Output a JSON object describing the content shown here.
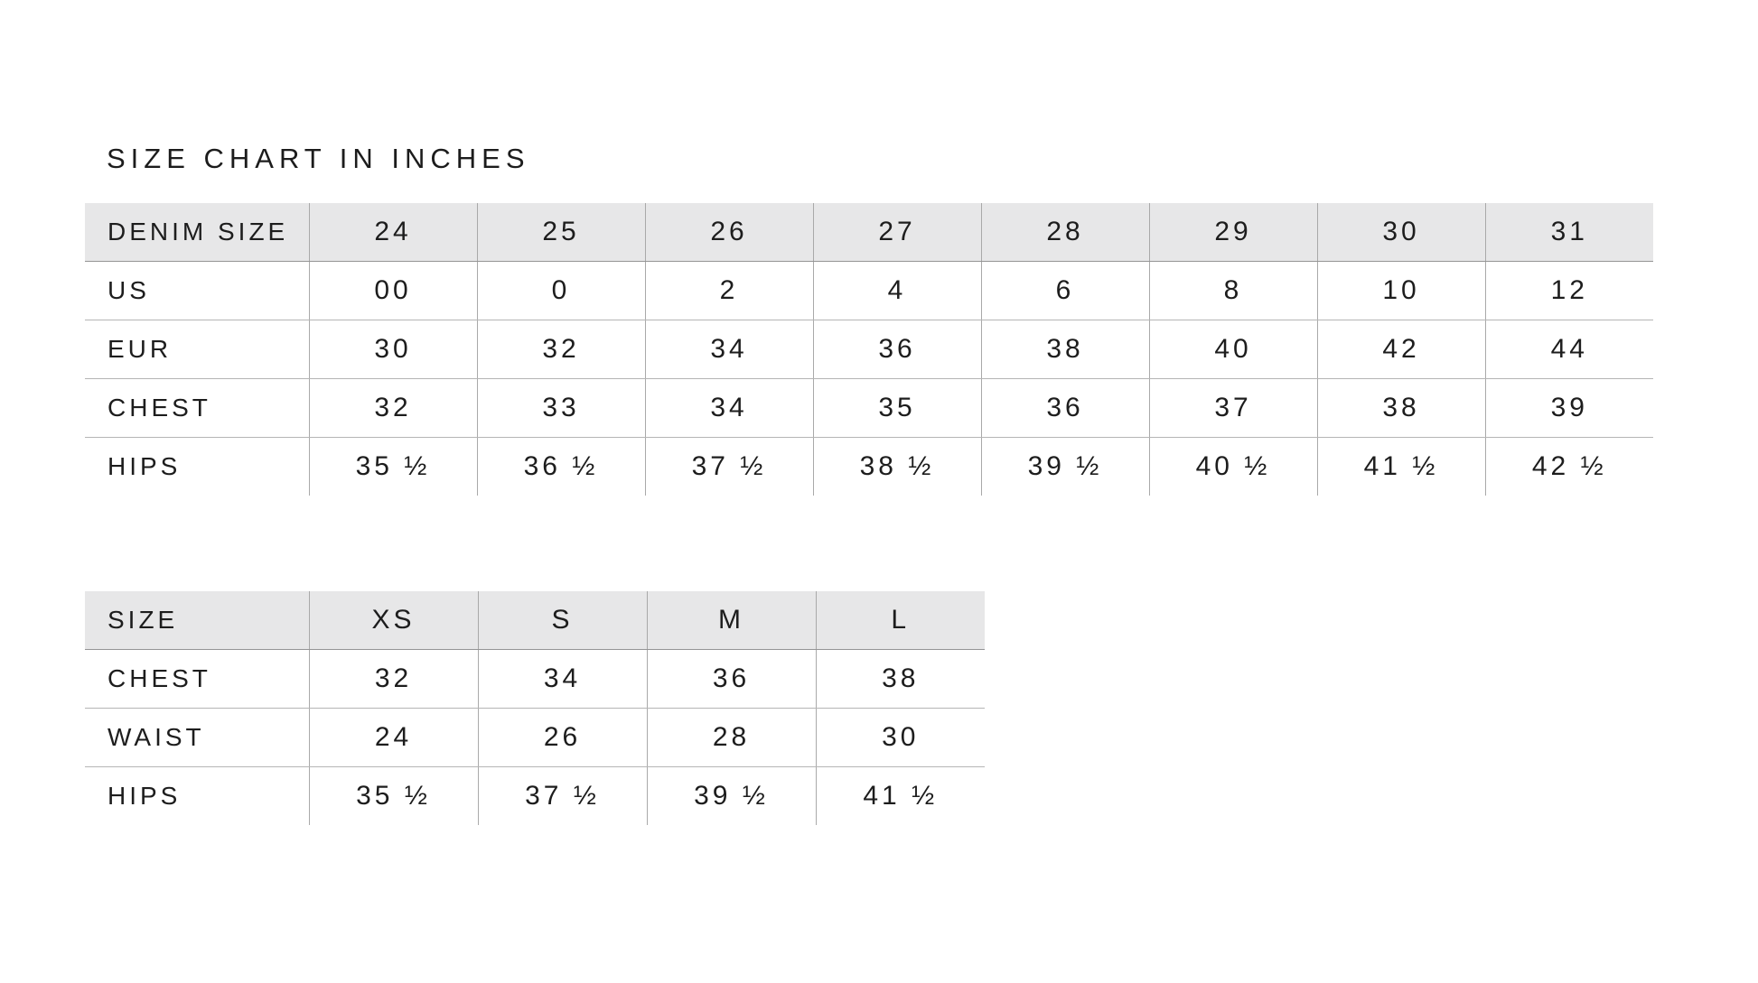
{
  "page": {
    "title": "SIZE CHART IN INCHES",
    "background_color": "#ffffff",
    "text_color": "#1d1d1d",
    "header_row_bg_color": "#e7e7e8",
    "grid_line_color": "#a9a9a9"
  },
  "tables": [
    {
      "name": "denim-size-table",
      "header": [
        "DENIM SIZE",
        "24",
        "25",
        "26",
        "27",
        "28",
        "29",
        "30",
        "31"
      ],
      "rows": [
        {
          "label": "US",
          "values": [
            "00",
            "0",
            "2",
            "4",
            "6",
            "8",
            "10",
            "12"
          ]
        },
        {
          "label": "EUR",
          "values": [
            "30",
            "32",
            "34",
            "36",
            "38",
            "40",
            "42",
            "44"
          ]
        },
        {
          "label": "CHEST",
          "values": [
            "32",
            "33",
            "34",
            "35",
            "36",
            "37",
            "38",
            "39"
          ]
        },
        {
          "label": "HIPS",
          "values": [
            "35 ½",
            "36 ½",
            "37 ½",
            "38 ½",
            "39 ½",
            "40 ½",
            "41 ½",
            "42 ½"
          ]
        }
      ]
    },
    {
      "name": "letter-size-table",
      "header": [
        "SIZE",
        "XS",
        "S",
        "M",
        "L"
      ],
      "rows": [
        {
          "label": "CHEST",
          "values": [
            "32",
            "34",
            "36",
            "38"
          ]
        },
        {
          "label": "WAIST",
          "values": [
            "24",
            "26",
            "28",
            "30"
          ]
        },
        {
          "label": "HIPS",
          "values": [
            "35 ½",
            "37 ½",
            "39 ½",
            "41 ½"
          ]
        }
      ]
    }
  ]
}
